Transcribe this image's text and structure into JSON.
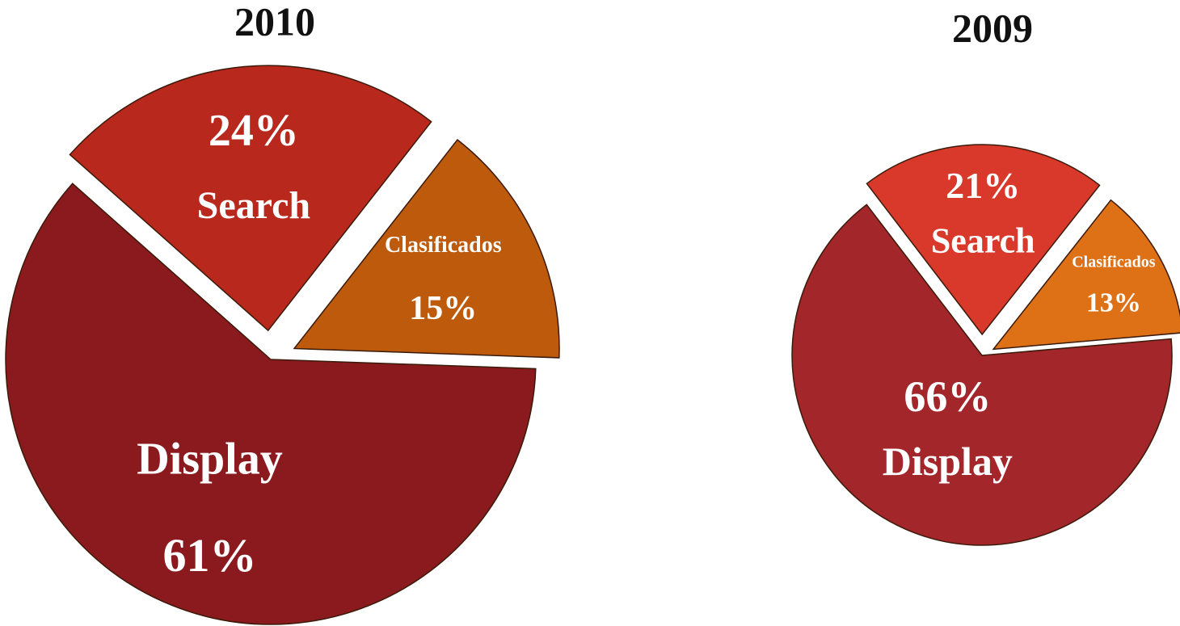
{
  "chart_data": [
    {
      "type": "pie",
      "title": "2010",
      "categories": [
        "Display",
        "Search",
        "Clasificados"
      ],
      "values": [
        61,
        24,
        15
      ],
      "value_labels": [
        "61%",
        "24%",
        "15%"
      ],
      "colors": [
        "#8a1a1d",
        "#b9281d",
        "#bd5a0c"
      ]
    },
    {
      "type": "pie",
      "title": "2009",
      "categories": [
        "Display",
        "Search",
        "Clasificados"
      ],
      "values": [
        66,
        21,
        13
      ],
      "value_labels": [
        "66%",
        "21%",
        "13%"
      ],
      "colors": [
        "#a2262a",
        "#d9392a",
        "#de7016"
      ]
    }
  ]
}
